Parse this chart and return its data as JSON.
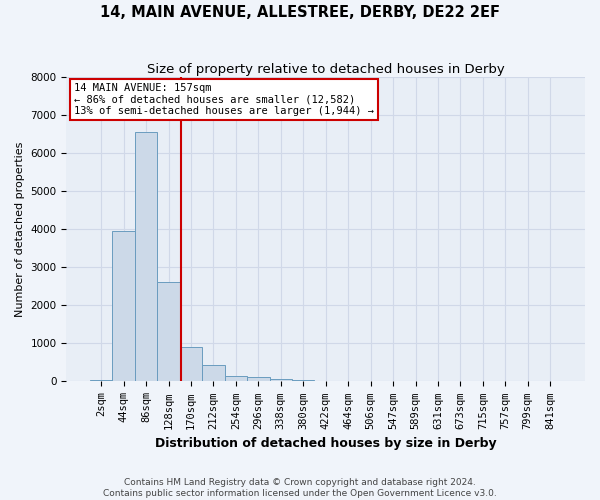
{
  "title": "14, MAIN AVENUE, ALLESTREE, DERBY, DE22 2EF",
  "subtitle": "Size of property relative to detached houses in Derby",
  "xlabel": "Distribution of detached houses by size in Derby",
  "ylabel": "Number of detached properties",
  "bin_labels": [
    "2sqm",
    "44sqm",
    "86sqm",
    "128sqm",
    "170sqm",
    "212sqm",
    "254sqm",
    "296sqm",
    "338sqm",
    "380sqm",
    "422sqm",
    "464sqm",
    "506sqm",
    "547sqm",
    "589sqm",
    "631sqm",
    "673sqm",
    "715sqm",
    "757sqm",
    "799sqm",
    "841sqm"
  ],
  "bar_heights": [
    50,
    3950,
    6550,
    2600,
    900,
    430,
    150,
    110,
    75,
    30,
    5,
    2,
    1,
    0,
    0,
    0,
    0,
    0,
    0,
    0,
    0
  ],
  "bar_color": "#ccd9e8",
  "bar_edge_color": "#6a9cbf",
  "vline_color": "#cc0000",
  "vline_pos": 3.57,
  "annotation_box_text": "14 MAIN AVENUE: 157sqm\n← 86% of detached houses are smaller (12,582)\n13% of semi-detached houses are larger (1,944) →",
  "ylim": [
    0,
    8000
  ],
  "yticks": [
    0,
    1000,
    2000,
    3000,
    4000,
    5000,
    6000,
    7000,
    8000
  ],
  "grid_color": "#d0d8e8",
  "plot_bg_color": "#e8eef6",
  "fig_bg_color": "#f0f4fa",
  "footer": "Contains HM Land Registry data © Crown copyright and database right 2024.\nContains public sector information licensed under the Open Government Licence v3.0.",
  "title_fontsize": 10.5,
  "subtitle_fontsize": 9.5,
  "ylabel_fontsize": 8,
  "xlabel_fontsize": 9,
  "tick_fontsize": 7.5,
  "annot_fontsize": 7.5,
  "footer_fontsize": 6.5
}
